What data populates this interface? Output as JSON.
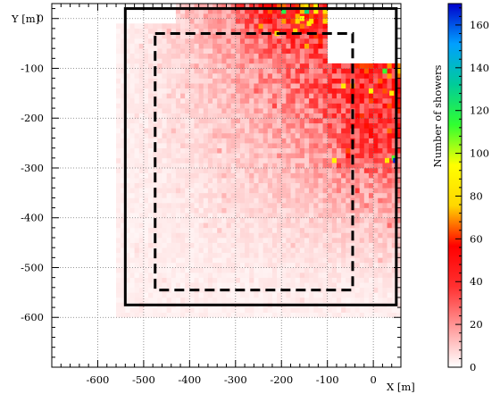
{
  "chart_data": {
    "type": "heatmap",
    "title": "",
    "xlabel": "X [m]",
    "ylabel": "Y [m]",
    "colorbar_label": "Number of showers",
    "xlim": [
      -700,
      60
    ],
    "ylim": [
      -700,
      30
    ],
    "x_ticks": [
      -600,
      -500,
      -400,
      -300,
      -200,
      -100,
      0
    ],
    "y_ticks": [
      0,
      -100,
      -200,
      -300,
      -400,
      -500,
      -600
    ],
    "colorbar_range": [
      0,
      170
    ],
    "colorbar_ticks": [
      0,
      20,
      40,
      60,
      80,
      100,
      120,
      140,
      160
    ],
    "grid": true,
    "colormap": [
      "#ffffff",
      "#ff9999",
      "#ff3030",
      "#ff0000",
      "#ffd700",
      "#ffff00",
      "#30ff30",
      "#00cc99",
      "#00a0ff",
      "#0000cc"
    ],
    "outer_boundary": {
      "x": [
        -540,
        50
      ],
      "y": [
        -575,
        20
      ]
    },
    "inner_boundary": {
      "x": [
        -475,
        -45
      ],
      "y": [
        -545,
        -30
      ]
    },
    "hotspots": [
      {
        "x": -155,
        "y": 0,
        "value": 90
      },
      {
        "x": -140,
        "y": -10,
        "value": 85
      },
      {
        "x": -210,
        "y": -30,
        "value": 80
      },
      {
        "x": -170,
        "y": -25,
        "value": 75
      },
      {
        "x": 40,
        "y": -150,
        "value": 85
      },
      {
        "x": -85,
        "y": -285,
        "value": 90
      },
      {
        "x": 45,
        "y": -280,
        "value": 110
      },
      {
        "x": 48,
        "y": -285,
        "value": 165
      },
      {
        "x": 30,
        "y": -285,
        "value": 85
      }
    ]
  }
}
